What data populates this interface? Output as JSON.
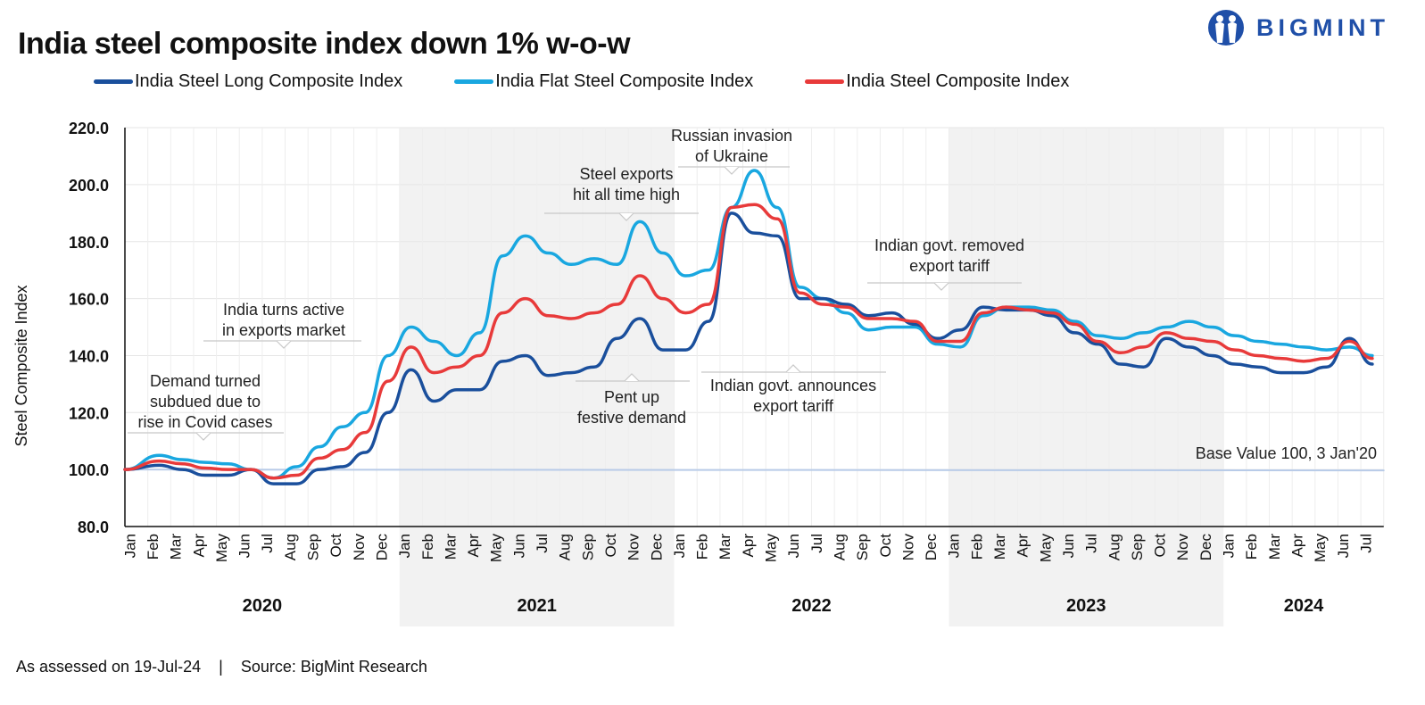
{
  "title": "India steel composite index down 1% w-o-w",
  "brand": {
    "name": "BIGMINT",
    "icon": "bigmint-logo-icon"
  },
  "footer": {
    "assessed": "As assessed on 19-Jul-24",
    "separator": "|",
    "source": "Source: BigMint Research"
  },
  "colors": {
    "long": "#1a4f9c",
    "flat": "#19a7e0",
    "composite": "#e83a3a",
    "base": "#b8cbe8",
    "shade": "#f2f2f2"
  },
  "chart_data": {
    "type": "line",
    "title": "India steel composite index down 1% w-o-w",
    "ylabel": "Steel Composite Index",
    "xlabel": "",
    "ylim": [
      80,
      220
    ],
    "y_ticks": [
      "80.0",
      "100.0",
      "120.0",
      "140.0",
      "160.0",
      "180.0",
      "200.0",
      "220.0"
    ],
    "grid": true,
    "legend_position": "top",
    "x_month_labels": [
      "Jan",
      "Feb",
      "Mar",
      "Apr",
      "May",
      "Jun",
      "Jul",
      "Aug",
      "Sep",
      "Oct",
      "Nov",
      "Dec",
      "Jan",
      "Feb",
      "Mar",
      "Apr",
      "May",
      "Jun",
      "Jul",
      "Aug",
      "Sep",
      "Oct",
      "Nov",
      "Dec",
      "Jan",
      "Feb",
      "Mar",
      "Apr",
      "May",
      "Jun",
      "Jul",
      "Aug",
      "Sep",
      "Oct",
      "Nov",
      "Dec",
      "Jan",
      "Feb",
      "Mar",
      "Apr",
      "May",
      "Jun",
      "Jul",
      "Aug",
      "Sep",
      "Oct",
      "Nov",
      "Dec",
      "Jan",
      "Feb",
      "Mar",
      "Apr",
      "May",
      "Jun",
      "Jul"
    ],
    "years": [
      "2020",
      "2021",
      "2022",
      "2023",
      "2024"
    ],
    "shaded_years": [
      "2021",
      "2023"
    ],
    "x": [
      "Jan-20",
      "Feb-20",
      "Mar-20",
      "Apr-20",
      "May-20",
      "Jun-20",
      "Jul-20",
      "Aug-20",
      "Sep-20",
      "Oct-20",
      "Nov-20",
      "Dec-20",
      "Jan-21",
      "Feb-21",
      "Mar-21",
      "Apr-21",
      "May-21",
      "Jun-21",
      "Jul-21",
      "Aug-21",
      "Sep-21",
      "Oct-21",
      "Nov-21",
      "Dec-21",
      "Jan-22",
      "Feb-22",
      "Mar-22",
      "Apr-22",
      "May-22",
      "Jun-22",
      "Jul-22",
      "Aug-22",
      "Sep-22",
      "Oct-22",
      "Nov-22",
      "Dec-22",
      "Jan-23",
      "Feb-23",
      "Mar-23",
      "Apr-23",
      "May-23",
      "Jun-23",
      "Jul-23",
      "Aug-23",
      "Sep-23",
      "Oct-23",
      "Nov-23",
      "Dec-23",
      "Jan-24",
      "Feb-24",
      "Mar-24",
      "Apr-24",
      "May-24",
      "Jun-24",
      "Jul-24"
    ],
    "series": [
      {
        "name": "India Steel Long Composite Index",
        "color": "#1a4f9c",
        "values": [
          100,
          101.5,
          100,
          98,
          98,
          100,
          95,
          95,
          100,
          101,
          106,
          120,
          135,
          124,
          128,
          128,
          138,
          140,
          133,
          134,
          136,
          146,
          153,
          142,
          142,
          152,
          190,
          183,
          182,
          160,
          160,
          158,
          154,
          155,
          151,
          146,
          149,
          157,
          156,
          156,
          154,
          148,
          144,
          137,
          136,
          146,
          143,
          140,
          137,
          136,
          134,
          134,
          136,
          146,
          137
        ]
      },
      {
        "name": "India Flat Steel Composite Index",
        "color": "#19a7e0",
        "values": [
          100,
          105,
          103.5,
          102.5,
          102,
          100,
          97,
          101,
          108,
          115,
          120,
          140,
          150,
          145,
          140,
          148,
          175,
          182,
          176,
          172,
          174,
          172,
          187,
          176,
          168,
          170,
          192,
          205,
          192,
          164,
          160,
          155,
          149,
          150,
          150,
          144,
          143,
          154,
          157,
          157,
          156,
          152,
          147,
          146,
          148,
          150,
          152,
          150,
          147,
          145,
          144,
          143,
          142,
          143,
          140
        ]
      },
      {
        "name": "India Steel Composite Index",
        "color": "#e83a3a",
        "values": [
          100,
          103,
          102,
          100.5,
          100,
          100,
          97,
          98,
          104,
          107,
          113,
          131,
          143,
          134,
          136,
          140,
          155,
          160,
          154,
          153,
          155,
          158,
          168,
          160,
          155,
          158,
          192,
          193,
          188,
          162,
          158,
          157,
          153,
          153,
          152,
          145,
          145,
          155,
          157,
          156,
          155,
          151,
          145,
          141,
          143,
          148,
          146,
          145,
          142,
          140,
          139,
          138,
          139,
          145,
          139
        ]
      },
      {
        "name": "Base Value 100, 3 Jan'20",
        "color": "#b8cbe8",
        "values": [
          100,
          100,
          100,
          100,
          100,
          100,
          100,
          100,
          100,
          100,
          100,
          100,
          100,
          100,
          100,
          100,
          100,
          100,
          100,
          100,
          100,
          100,
          100,
          100,
          100,
          100,
          100,
          100,
          100,
          100,
          100,
          100,
          100,
          100,
          100,
          100,
          100,
          100,
          100,
          100,
          100,
          100,
          100,
          100,
          100,
          100,
          100,
          100,
          100,
          100,
          100,
          100,
          100,
          100,
          100
        ]
      }
    ],
    "annotations": [
      {
        "id": "covid",
        "text": [
          "Demand turned",
          "subdued due to",
          "rise in Covid cases"
        ],
        "at": "Apr-20"
      },
      {
        "id": "exports-active",
        "text": [
          "India turns active",
          "in exports market"
        ],
        "at": "Jun-20"
      },
      {
        "id": "exports-high",
        "text": [
          "Steel exports",
          "hit all time high"
        ],
        "at": "Oct-21"
      },
      {
        "id": "festive",
        "text": [
          "Pent up",
          "festive demand"
        ],
        "at": "Nov-21"
      },
      {
        "id": "russia",
        "text": [
          "Russian invasion",
          "of Ukraine"
        ],
        "at": "Apr-22"
      },
      {
        "id": "tariff-announce",
        "text": [
          "Indian govt. announces",
          "export tariff"
        ],
        "at": "Jul-22"
      },
      {
        "id": "tariff-removed",
        "text": [
          "Indian govt. removed",
          "export tariff"
        ],
        "at": "Nov-22"
      },
      {
        "id": "base",
        "text": [
          "Base Value 100, 3 Jan'20"
        ],
        "at": "Jul-24"
      }
    ]
  }
}
